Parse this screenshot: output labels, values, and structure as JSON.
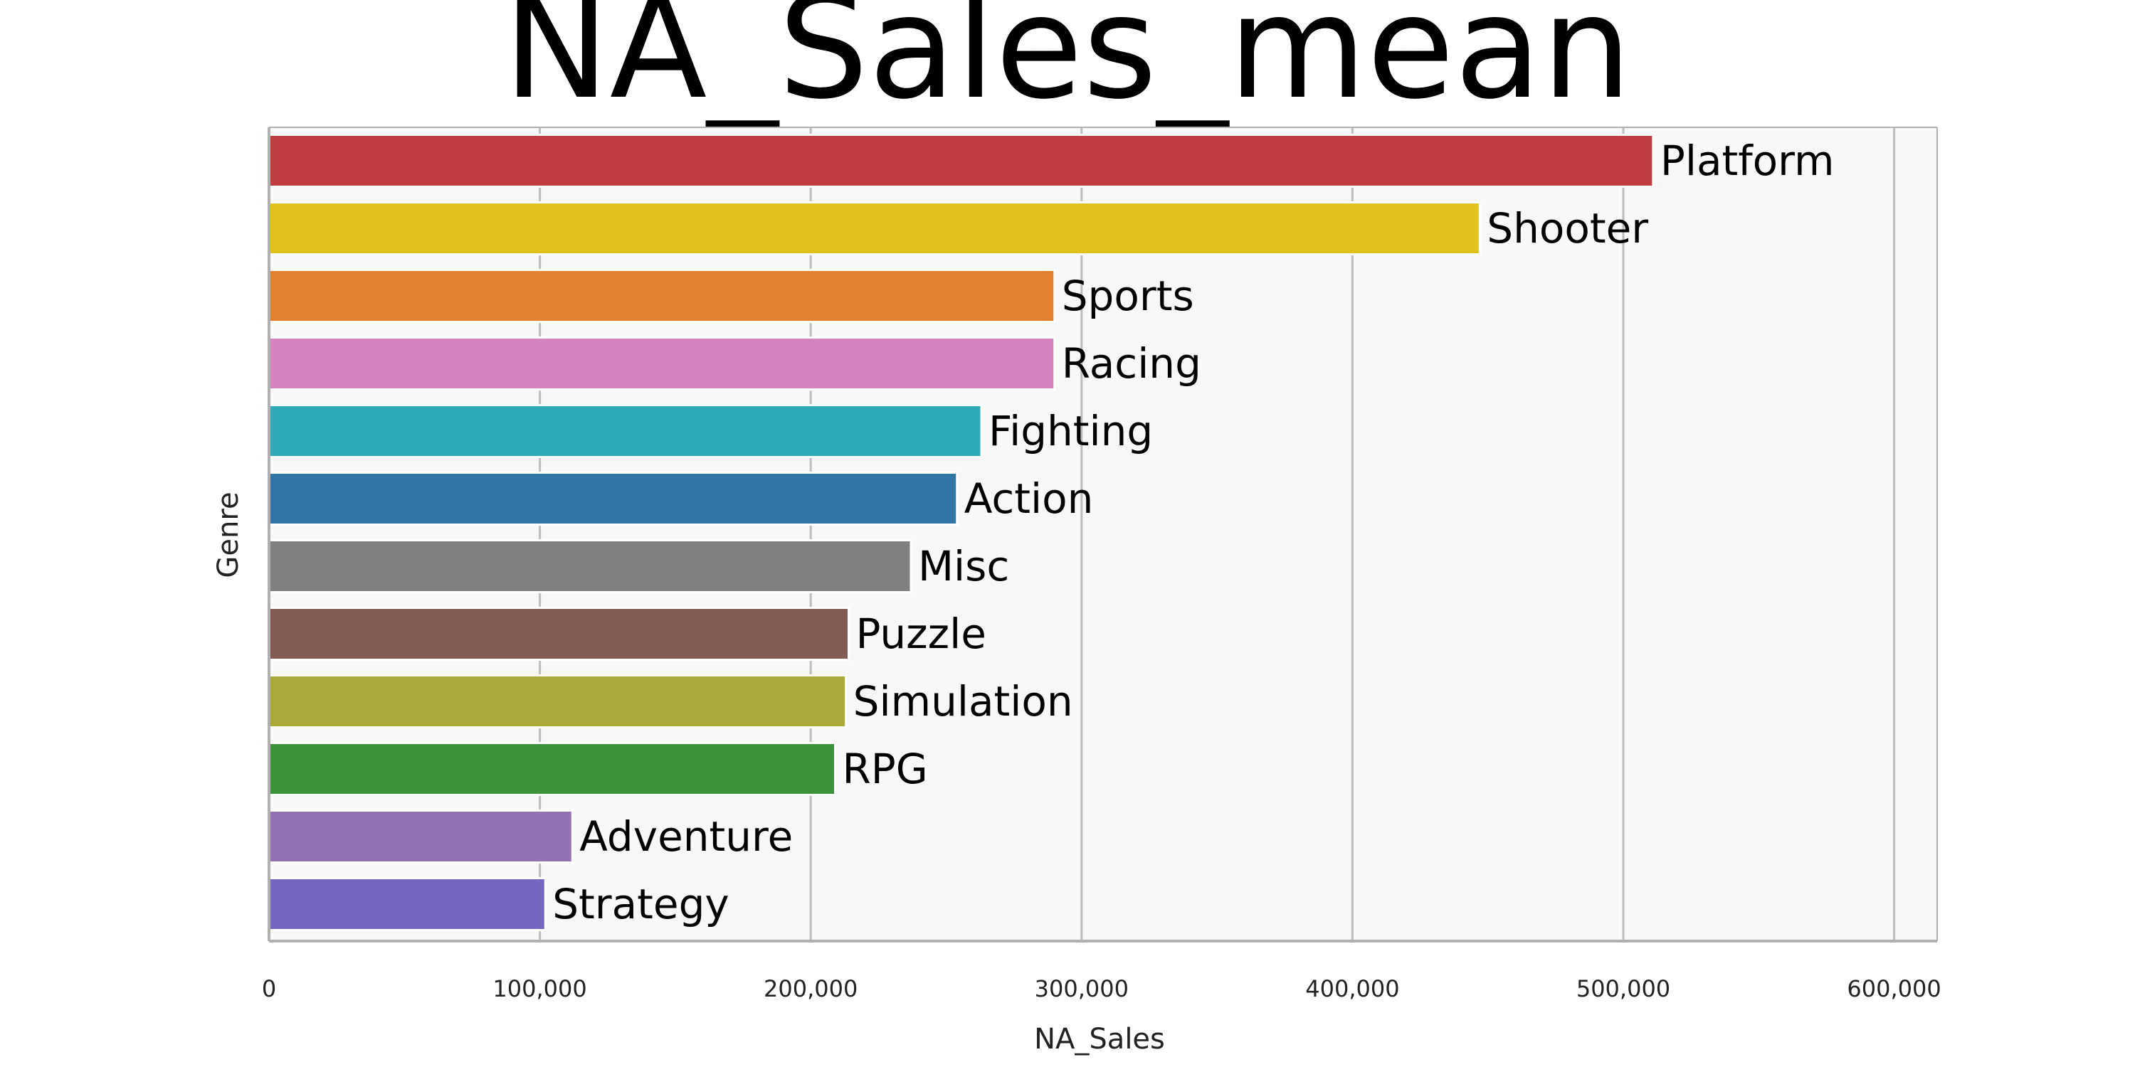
{
  "chart_data": {
    "type": "bar",
    "orientation": "horizontal",
    "title": "NA_Sales_mean",
    "xlabel": "NA_Sales",
    "ylabel": "Genre",
    "xlim": [
      0,
      614000
    ],
    "xticks": [
      0,
      100000,
      200000,
      300000,
      400000,
      500000,
      600000
    ],
    "xtick_labels": [
      "0",
      "100,000",
      "200,000",
      "300,000",
      "400,000",
      "500,000",
      "600,000"
    ],
    "grid": "vertical",
    "legend": "none",
    "plot_background": "#f8f8f8",
    "categories": [
      "Platform",
      "Shooter",
      "Sports",
      "Racing",
      "Fighting",
      "Action",
      "Misc",
      "Puzzle",
      "Simulation",
      "RPG",
      "Adventure",
      "Strategy"
    ],
    "values": [
      511000,
      447000,
      290000,
      290000,
      263000,
      254000,
      237000,
      214000,
      213000,
      209000,
      112000,
      102000
    ],
    "colors": [
      "#c13d3f",
      "#e0c11e",
      "#e3812d",
      "#d684bf",
      "#2fabb8",
      "#3176a4",
      "#7f7f7f",
      "#835b53",
      "#a9aa38",
      "#3b943c",
      "#9471b1",
      "#7566bf"
    ]
  }
}
